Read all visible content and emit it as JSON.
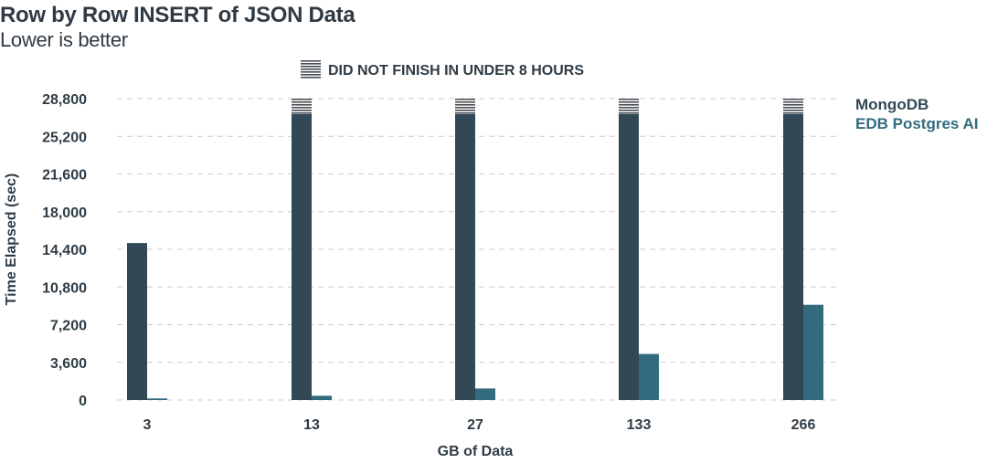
{
  "title": "Row by Row INSERT of JSON Data",
  "subtitle": "Lower is better",
  "dnf_legend": "DID NOT FINISH IN UNDER 8 HOURS",
  "colors": {
    "mongodb": "#324856",
    "edb": "#336b7e",
    "grid": "#c9cdd1",
    "text": "#2f3c45"
  },
  "chart_data": {
    "type": "bar",
    "xlabel": "GB of Data",
    "ylabel": "Time Elapsed (sec)",
    "ylim": [
      0,
      28800
    ],
    "yticks": [
      0,
      3600,
      7200,
      10800,
      14400,
      18000,
      21600,
      25200,
      28800
    ],
    "ytick_labels": [
      "0",
      "3,600",
      "7,200",
      "10,800",
      "14,400",
      "18,000",
      "21,600",
      "25,200",
      "28,800"
    ],
    "categories": [
      "3",
      "13",
      "27",
      "133",
      "266"
    ],
    "series": [
      {
        "name": "MongoDB",
        "values": [
          15000,
          28800,
          28800,
          28800,
          28800
        ],
        "did_not_finish": [
          false,
          true,
          true,
          true,
          true
        ]
      },
      {
        "name": "EDB Postgres AI",
        "values": [
          150,
          400,
          1100,
          4400,
          9100
        ],
        "did_not_finish": [
          false,
          false,
          false,
          false,
          false
        ]
      }
    ],
    "grid": true,
    "legend_position": "top-right"
  }
}
